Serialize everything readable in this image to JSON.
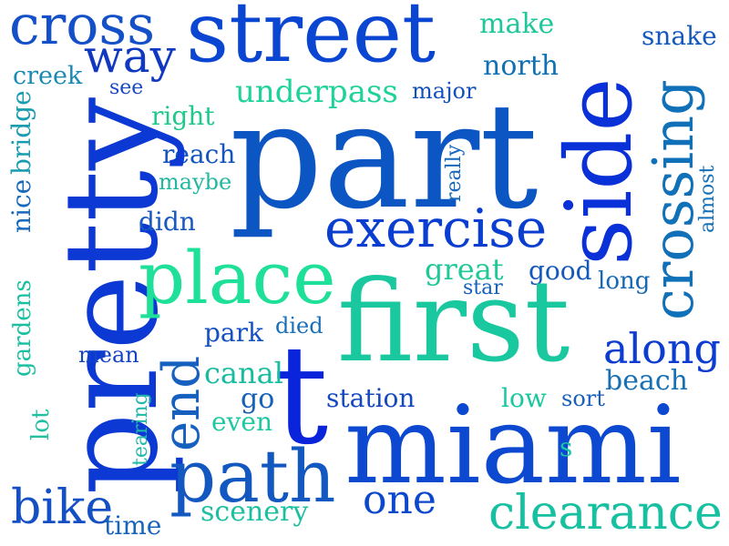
{
  "words": [
    {
      "text": "cross",
      "color": "#1450C8"
    },
    {
      "text": "street",
      "color": "#0A46D2"
    },
    {
      "text": "way",
      "color": "#1038C0"
    },
    {
      "text": "make",
      "color": "#1EC89A"
    },
    {
      "text": "snake",
      "color": "#1458BE"
    },
    {
      "text": "creek",
      "color": "#1A8AB4"
    },
    {
      "text": "north",
      "color": "#1070B4"
    },
    {
      "text": "see",
      "color": "#1848C4"
    },
    {
      "text": "underpass",
      "color": "#1ED29A"
    },
    {
      "text": "major",
      "color": "#1250BE"
    },
    {
      "text": "side",
      "color": "#0A30D8"
    },
    {
      "text": "part",
      "color": "#0C56C4"
    },
    {
      "text": "crossing",
      "color": "#1070B8"
    },
    {
      "text": "bridge",
      "color": "#1A9CB0"
    },
    {
      "text": "right",
      "color": "#20C88C"
    },
    {
      "text": "reach",
      "color": "#1454BE"
    },
    {
      "text": "really",
      "color": "#1468BE"
    },
    {
      "text": "maybe",
      "color": "#22B8A0"
    },
    {
      "text": "almost",
      "color": "#1670B8"
    },
    {
      "text": "nice",
      "color": "#1868BC"
    },
    {
      "text": "pretty",
      "color": "#0C38D4"
    },
    {
      "text": "didn",
      "color": "#1858C0"
    },
    {
      "text": "exercise",
      "color": "#0A3ED0"
    },
    {
      "text": "place",
      "color": "#1EE098"
    },
    {
      "text": "great",
      "color": "#20C898"
    },
    {
      "text": "good",
      "color": "#1458BC"
    },
    {
      "text": "long",
      "color": "#1468B8"
    },
    {
      "text": "star",
      "color": "#1660BC"
    },
    {
      "text": "gardens",
      "color": "#1AC0A0"
    },
    {
      "text": "first",
      "color": "#1AC8A0"
    },
    {
      "text": "park",
      "color": "#1450C0"
    },
    {
      "text": "died",
      "color": "#1A70B8"
    },
    {
      "text": "along",
      "color": "#0C3CD0"
    },
    {
      "text": "mean",
      "color": "#1244C4"
    },
    {
      "text": "end",
      "color": "#1660C0"
    },
    {
      "text": "t",
      "color": "#0A24DC"
    },
    {
      "text": "canal",
      "color": "#1ABCA0"
    },
    {
      "text": "beach",
      "color": "#1870B4"
    },
    {
      "text": "lot",
      "color": "#20C0A0"
    },
    {
      "text": "go",
      "color": "#1660B8"
    },
    {
      "text": "station",
      "color": "#1448C0"
    },
    {
      "text": "low",
      "color": "#1AC8A0"
    },
    {
      "text": "sort",
      "color": "#1860BC"
    },
    {
      "text": "tearing",
      "color": "#20B8A8"
    },
    {
      "text": "even",
      "color": "#1EC8A0"
    },
    {
      "text": "miami",
      "color": "#0C48D0"
    },
    {
      "text": "s",
      "color": "#1AC8A8"
    },
    {
      "text": "path",
      "color": "#1258C0"
    },
    {
      "text": "one",
      "color": "#0C48CC"
    },
    {
      "text": "bike",
      "color": "#1450C4"
    },
    {
      "text": "time",
      "color": "#1864BC"
    },
    {
      "text": "scenery",
      "color": "#1CC0A0"
    },
    {
      "text": "clearance",
      "color": "#16C0A0"
    }
  ]
}
